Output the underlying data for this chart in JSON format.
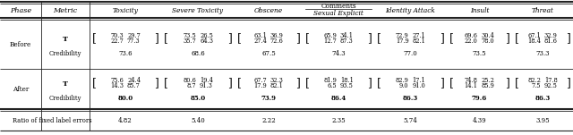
{
  "before_T": [
    [
      "70.3",
      "29.7",
      "22.7",
      "77.3"
    ],
    [
      "73.5",
      "26.5",
      "35.7",
      "64.3"
    ],
    [
      "63.1",
      "36.9",
      "27.4",
      "72.6"
    ],
    [
      "65.9",
      "34.1",
      "12.7",
      "87.3"
    ],
    [
      "72.9",
      "27.1",
      "17.9",
      "82.1"
    ],
    [
      "69.6",
      "30.4",
      "22.0",
      "78.0"
    ],
    [
      "67.1",
      "32.9",
      "18.4",
      "81.6"
    ]
  ],
  "before_cred": [
    "73.6",
    "68.6",
    "67.5",
    "74.3",
    "77.0",
    "73.5",
    "73.3"
  ],
  "after_T": [
    [
      "75.6",
      "24.4",
      "14.3",
      "85.7"
    ],
    [
      "80.6",
      "19.4",
      "8.7",
      "91.3"
    ],
    [
      "67.7",
      "32.3",
      "17.9",
      "82.1"
    ],
    [
      "81.9",
      "18.1",
      "6.5",
      "93.5"
    ],
    [
      "82.9",
      "17.1",
      "9.0",
      "91.0"
    ],
    [
      "74.8",
      "25.2",
      "14.1",
      "85.9"
    ],
    [
      "82.2",
      "17.8",
      "7.5",
      "92.5"
    ]
  ],
  "after_cred": [
    "80.0",
    "85.0",
    "73.9",
    "86.4",
    "86.3",
    "79.6",
    "86.3"
  ],
  "ratio": [
    "4.82",
    "5.40",
    "2.22",
    "2.35",
    "5.74",
    "4.39",
    "3.95"
  ],
  "col_headers": [
    "Toxicity",
    "Severe Toxicity",
    "Obscene",
    "Sexual Explicit",
    "Identity Attack",
    "Insult",
    "Threat"
  ],
  "background": "#ffffff"
}
